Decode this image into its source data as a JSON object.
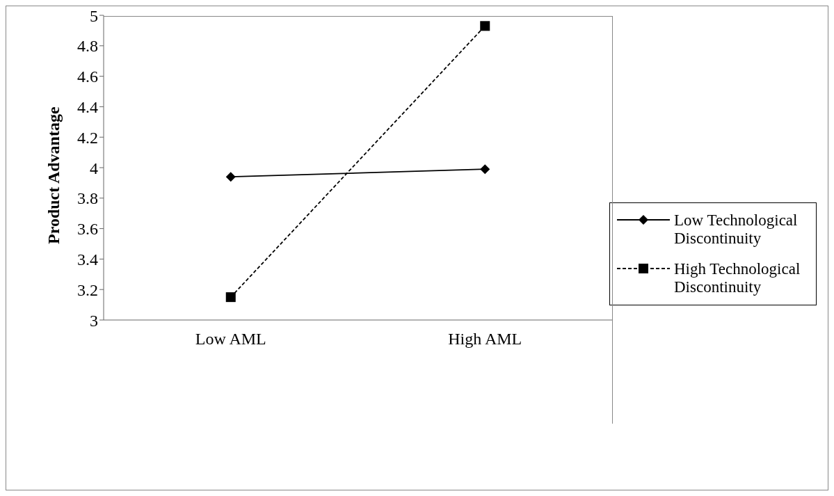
{
  "chart_data": {
    "type": "line",
    "ylabel": "Product Advantage",
    "categories": [
      "Low AML",
      "High AML"
    ],
    "series": [
      {
        "name": "Low Technological Discontinuity",
        "color": "#000000",
        "values": [
          3.94,
          3.99
        ],
        "marker": "diamond",
        "line_style": "solid"
      },
      {
        "name": "High Technological Discontinuity",
        "color": "#000000",
        "values": [
          3.15,
          4.93
        ],
        "marker": "square",
        "line_style": "dashed"
      }
    ],
    "ylim": [
      3,
      5
    ],
    "yticks": [
      3,
      3.2,
      3.4,
      3.6,
      3.8,
      4,
      4.2,
      4.4,
      4.6,
      4.8,
      5
    ],
    "grid": false,
    "legend": "right"
  }
}
